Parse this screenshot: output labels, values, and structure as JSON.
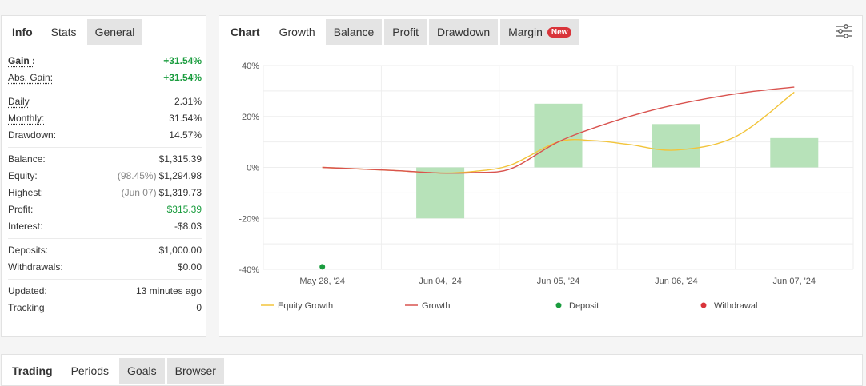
{
  "left_panel": {
    "tabs": [
      {
        "label": "Info"
      },
      {
        "label": "Stats"
      },
      {
        "label": "General"
      }
    ],
    "groups": [
      [
        {
          "label": "Gain :",
          "value": "+31.54%",
          "value_color": "green",
          "style": "gain"
        },
        {
          "label": "Abs. Gain:",
          "value": "+31.54%",
          "value_color": "green",
          "style": "abs"
        }
      ],
      [
        {
          "label": "Daily",
          "value": "2.31%"
        },
        {
          "label": "Monthly:",
          "value": "31.54%"
        },
        {
          "label": "Drawdown:",
          "value": "14.57%"
        }
      ],
      [
        {
          "label": "Balance:",
          "value": "$1,315.39"
        },
        {
          "label": "Equity:",
          "prefix": "(98.45%)",
          "value": "$1,294.98"
        },
        {
          "label": "Highest:",
          "prefix": "(Jun 07)",
          "value": "$1,319.73"
        },
        {
          "label": "Profit:",
          "value": "$315.39",
          "value_color": "green"
        },
        {
          "label": "Interest:",
          "value": "-$8.03"
        }
      ],
      [
        {
          "label": "Deposits:",
          "value": "$1,000.00"
        },
        {
          "label": "Withdrawals:",
          "value": "$0.00"
        }
      ],
      [
        {
          "label": "Updated:",
          "value": "13 minutes ago"
        },
        {
          "label": "Tracking",
          "value": "0"
        }
      ]
    ]
  },
  "right_panel": {
    "tabs": [
      {
        "label": "Chart"
      },
      {
        "label": "Growth"
      },
      {
        "label": "Balance"
      },
      {
        "label": "Profit"
      },
      {
        "label": "Drawdown"
      },
      {
        "label": "Margin",
        "badge": "New"
      }
    ],
    "settings_icon": "sliders-icon"
  },
  "chart_data": {
    "type": "bar",
    "categories": [
      "May 28, '24",
      "Jun 04, '24",
      "Jun 05, '24",
      "Jun 06, '24",
      "Jun 07, '24"
    ],
    "yticks": [
      "40%",
      "20%",
      "0%",
      "-20%",
      "-40%"
    ],
    "ylim": [
      -40,
      40
    ],
    "grid": true,
    "bars": [
      null,
      -20,
      25,
      17,
      11.5
    ],
    "series": [
      {
        "name": "Equity Growth",
        "color": "#f2c43a",
        "x": [
          0,
          0.6,
          1,
          1.3,
          1.6,
          2,
          2.3,
          2.6,
          3,
          3.5,
          4
        ],
        "values": [
          0,
          -1.2,
          -2.2,
          -1.5,
          1,
          10,
          10.5,
          9,
          6.8,
          12,
          29.5
        ]
      },
      {
        "name": "Growth",
        "color": "#d9534f",
        "x": [
          0,
          0.6,
          1,
          1.3,
          1.6,
          2,
          2.4,
          2.8,
          3.2,
          3.6,
          4
        ],
        "values": [
          0,
          -1.2,
          -2.2,
          -2,
          -0.5,
          10,
          17,
          22.5,
          26.5,
          29.5,
          31.5
        ]
      }
    ],
    "deposit": {
      "category_index": 0,
      "value": -39
    },
    "legend_position": "bottom",
    "legend": [
      {
        "label": "Equity Growth",
        "kind": "line",
        "color": "#f2c43a"
      },
      {
        "label": "Growth",
        "kind": "line",
        "color": "#d9534f"
      },
      {
        "label": "Deposit",
        "kind": "dot",
        "color": "#1a9c3e"
      },
      {
        "label": "Withdrawal",
        "kind": "dot",
        "color": "#d9343a"
      }
    ],
    "bar_color": "#b7e2b9",
    "colors": {
      "grid": "#eeeeee",
      "label": "#555555"
    }
  },
  "bottom_panel": {
    "tabs": [
      {
        "label": "Trading"
      },
      {
        "label": "Periods"
      },
      {
        "label": "Goals"
      },
      {
        "label": "Browser"
      }
    ]
  }
}
